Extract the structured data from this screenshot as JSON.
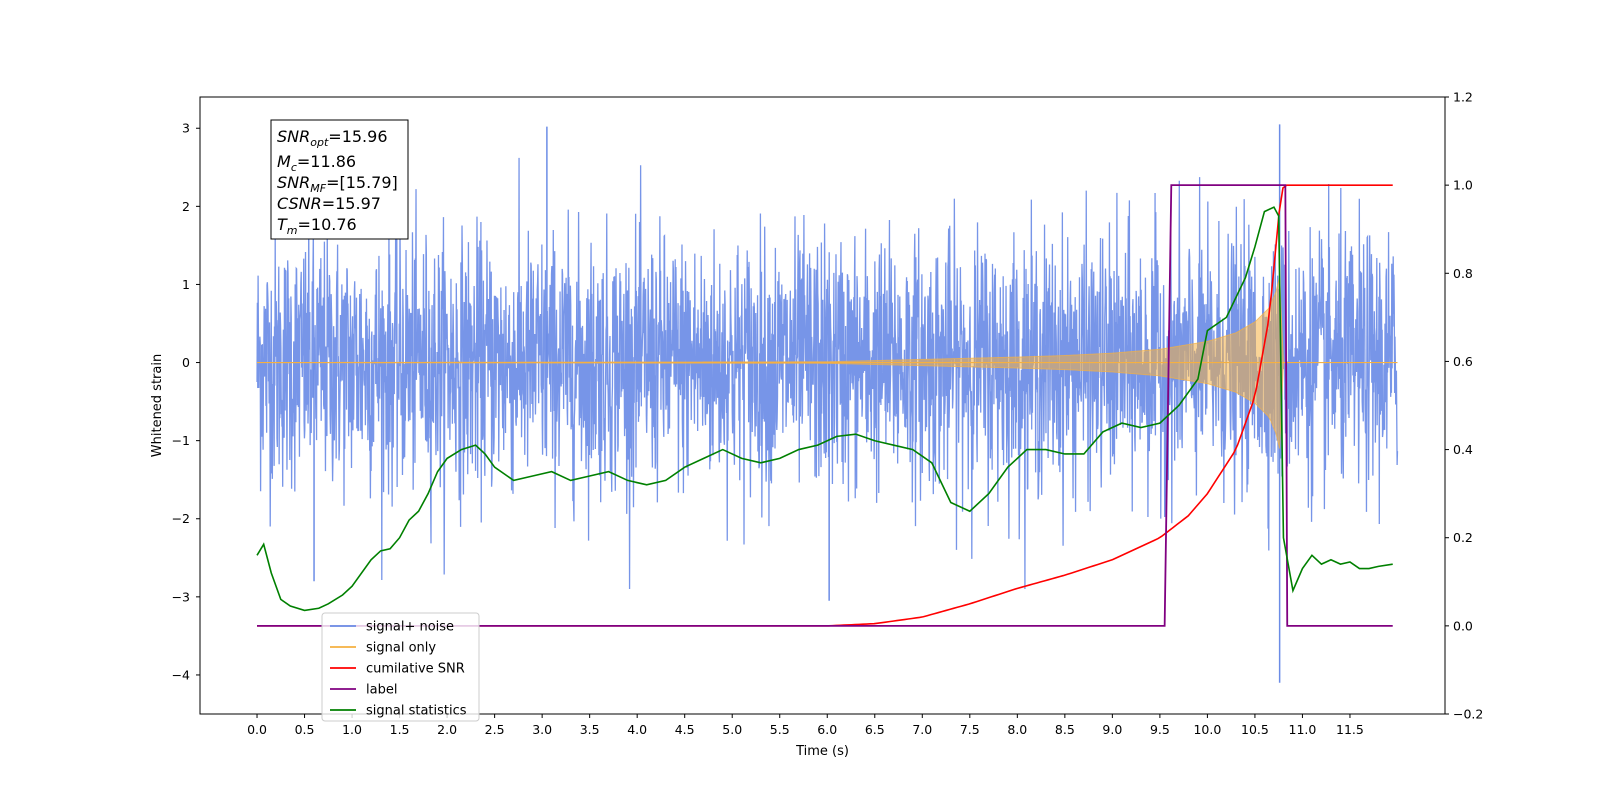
{
  "chart_data": {
    "type": "line",
    "xlabel": "Time (s)",
    "ylabel_left": "Whitened strain",
    "ylabel_right": "",
    "xlim": [
      -0.6,
      12.5
    ],
    "ylim_left": [
      -4.5,
      3.4
    ],
    "ylim_right": [
      -0.2,
      1.2
    ],
    "x_ticks": [
      "0.0",
      "0.5",
      "1.0",
      "1.5",
      "2.0",
      "2.5",
      "3.0",
      "3.5",
      "4.0",
      "4.5",
      "5.0",
      "5.5",
      "6.0",
      "6.5",
      "7.0",
      "7.5",
      "8.0",
      "8.5",
      "9.0",
      "9.5",
      "10.0",
      "10.5",
      "11.0",
      "11.5"
    ],
    "y_ticks_left": [
      "3",
      "2",
      "1",
      "0",
      "−1",
      "−2",
      "−3",
      "−4"
    ],
    "y_ticks_right": [
      "1.2",
      "1.0",
      "0.8",
      "0.6",
      "0.4",
      "0.2",
      "0.0",
      "−0.2"
    ],
    "grid": false,
    "legend_position": "lower-left",
    "colors": {
      "signal_noise": "#6b8ce6",
      "signal_only": "#f5b041",
      "cumulative_snr": "#ff0000",
      "label": "#800080",
      "signal_statistics": "#008000"
    },
    "annotation": {
      "lines": [
        {
          "symbol": "SNR",
          "sub": "opt",
          "rest": "=15.96"
        },
        {
          "symbol": "M",
          "sub": "c",
          "rest": "=11.86"
        },
        {
          "symbol": "SNR",
          "sub": "MF",
          "rest": "=[15.79]"
        },
        {
          "symbol": "CSNR",
          "sub": "",
          "rest": "=15.97"
        },
        {
          "symbol": "T",
          "sub": "m",
          "rest": "=10.76"
        }
      ]
    },
    "legend": [
      {
        "label": "signal+ noise",
        "color": "#6b8ce6"
      },
      {
        "label": "signal only",
        "color": "#f5b041"
      },
      {
        "label": "cumilative SNR",
        "color": "#ff0000"
      },
      {
        "label": "label",
        "color": "#800080"
      },
      {
        "label": "signal statistics",
        "color": "#008000"
      }
    ],
    "series": [
      {
        "name": "signal+ noise",
        "axis": "left",
        "description_points": {
          "x_range": [
            0.0,
            12.0
          ],
          "spread_sigma": 0.8,
          "peak_spikes": [
            {
              "x": 3.05,
              "y": 3.02
            },
            {
              "x": 10.76,
              "y": 3.05
            },
            {
              "x": 10.76,
              "y": -4.1
            },
            {
              "x": 6.02,
              "y": -3.05
            },
            {
              "x": 0.6,
              "y": -2.8
            }
          ]
        }
      },
      {
        "name": "signal only",
        "axis": "left",
        "envelope": {
          "x": [
            0,
            6.0,
            7.0,
            8.0,
            8.5,
            9.0,
            9.5,
            10.0,
            10.3,
            10.5,
            10.65,
            10.72,
            10.76,
            10.8,
            12.0
          ],
          "amp": [
            0.0,
            0.01,
            0.04,
            0.07,
            0.09,
            0.12,
            0.17,
            0.27,
            0.38,
            0.52,
            0.7,
            0.9,
            1.1,
            0.0,
            0.0
          ]
        }
      },
      {
        "name": "cumilative SNR",
        "axis": "right",
        "x": [
          0.0,
          6.0,
          6.5,
          7.0,
          7.5,
          8.0,
          8.5,
          9.0,
          9.5,
          9.8,
          10.0,
          10.3,
          10.5,
          10.65,
          10.76,
          10.8,
          11.95
        ],
        "y": [
          0.0,
          0.0,
          0.005,
          0.02,
          0.05,
          0.085,
          0.115,
          0.15,
          0.2,
          0.25,
          0.3,
          0.4,
          0.52,
          0.7,
          0.95,
          1.0,
          1.0
        ]
      },
      {
        "name": "label",
        "axis": "right",
        "x": [
          0.0,
          9.55,
          9.62,
          10.82,
          10.84,
          11.95
        ],
        "y": [
          0.0,
          0.0,
          1.0,
          1.0,
          0.0,
          0.0
        ]
      },
      {
        "name": "signal statistics",
        "axis": "right",
        "x": [
          0.0,
          0.07,
          0.15,
          0.25,
          0.35,
          0.5,
          0.65,
          0.75,
          0.9,
          1.0,
          1.2,
          1.3,
          1.4,
          1.5,
          1.6,
          1.7,
          1.8,
          1.9,
          2.0,
          2.15,
          2.3,
          2.4,
          2.5,
          2.7,
          2.9,
          3.1,
          3.3,
          3.5,
          3.7,
          3.9,
          4.1,
          4.3,
          4.5,
          4.7,
          4.9,
          5.1,
          5.3,
          5.5,
          5.7,
          5.9,
          6.1,
          6.3,
          6.5,
          6.7,
          6.9,
          7.1,
          7.3,
          7.5,
          7.7,
          7.9,
          8.1,
          8.3,
          8.5,
          8.7,
          8.9,
          9.1,
          9.3,
          9.5,
          9.7,
          9.9,
          10.0,
          10.2,
          10.4,
          10.5,
          10.6,
          10.7,
          10.75,
          10.8,
          10.9,
          11.0,
          11.1,
          11.2,
          11.3,
          11.4,
          11.5,
          11.6,
          11.7,
          11.8,
          11.95
        ],
        "y": [
          0.16,
          0.185,
          0.12,
          0.06,
          0.045,
          0.035,
          0.04,
          0.05,
          0.07,
          0.09,
          0.15,
          0.17,
          0.175,
          0.2,
          0.24,
          0.26,
          0.3,
          0.35,
          0.38,
          0.4,
          0.41,
          0.39,
          0.36,
          0.33,
          0.34,
          0.35,
          0.33,
          0.34,
          0.35,
          0.33,
          0.32,
          0.33,
          0.36,
          0.38,
          0.4,
          0.38,
          0.37,
          0.38,
          0.4,
          0.41,
          0.43,
          0.435,
          0.42,
          0.41,
          0.4,
          0.37,
          0.28,
          0.26,
          0.3,
          0.36,
          0.4,
          0.4,
          0.39,
          0.39,
          0.44,
          0.46,
          0.45,
          0.46,
          0.5,
          0.56,
          0.67,
          0.7,
          0.79,
          0.86,
          0.94,
          0.95,
          0.93,
          0.2,
          0.08,
          0.13,
          0.16,
          0.14,
          0.15,
          0.14,
          0.145,
          0.13,
          0.13,
          0.135,
          0.14
        ]
      }
    ]
  }
}
